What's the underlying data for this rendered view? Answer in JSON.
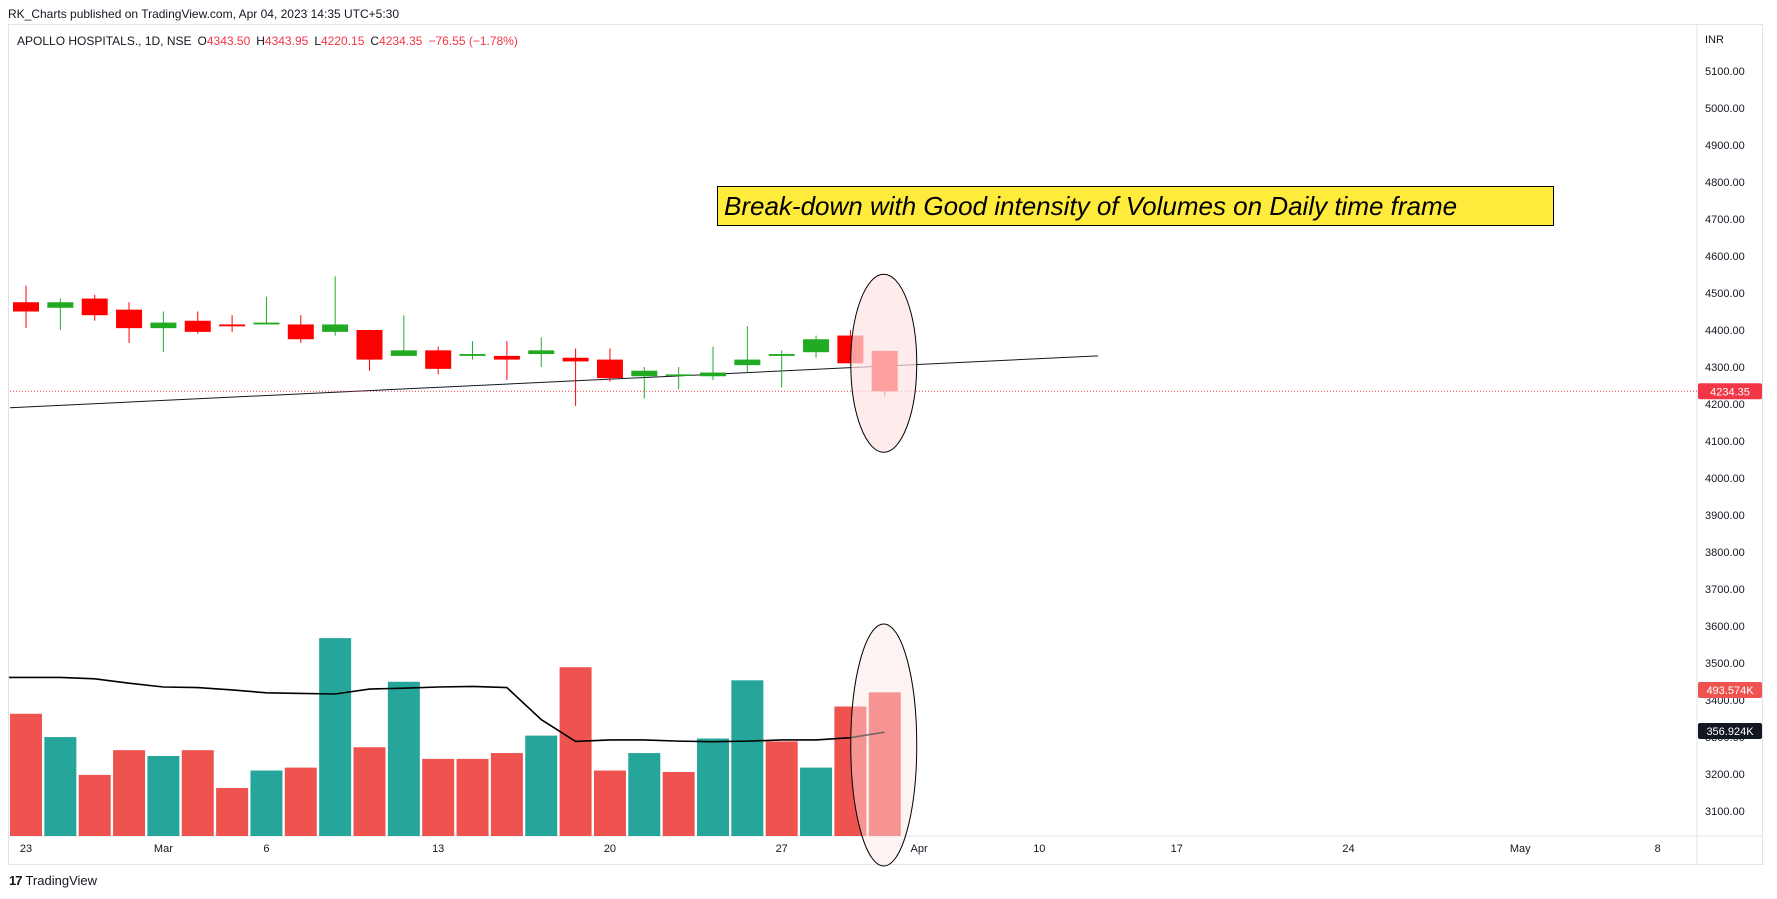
{
  "header": {
    "publisher": "RK_Charts published on TradingView.com, Apr 04, 2023 14:35 UTC+5:30"
  },
  "legend": {
    "symbol": "APOLLO HOSPITALS., 1D, NSE",
    "open_label": "O",
    "open": "4343.50",
    "high_label": "H",
    "high": "4343.95",
    "low_label": "L",
    "low": "4220.15",
    "close_label": "C",
    "close": "4234.35",
    "change": "−76.55 (−1.78%)"
  },
  "currency": "INR",
  "annotation": "Break-down with Good intensity of Volumes on Daily time frame",
  "footer": {
    "brand": "TradingView"
  },
  "colors": {
    "up": "#22ab22",
    "down": "#ff0000",
    "vol_up": "#26a69a",
    "vol_down": "#ef5350",
    "annotation_bg": "#ffeb3b",
    "ellipse_fill": "#fde4e4"
  },
  "chart_data": {
    "type": "candlestick",
    "price_axis": {
      "ticks": [
        5100,
        5000,
        4900,
        4800,
        4700,
        4600,
        4500,
        4400,
        4300,
        4200,
        4100,
        4000,
        3900,
        3800,
        3700,
        3600,
        3500,
        3400,
        3300,
        3200,
        3100
      ],
      "last_price_label": "4234.35",
      "volume_label": "493.574K",
      "volume_ma_label": "356.924K"
    },
    "x_axis": {
      "ticks": [
        "23",
        "Mar",
        "6",
        "13",
        "20",
        "27",
        "Apr",
        "10",
        "17",
        "24",
        "May",
        "8"
      ]
    },
    "candles": [
      {
        "o": 4475,
        "h": 4520,
        "l": 4405,
        "c": 4450
      },
      {
        "o": 4460,
        "h": 4485,
        "l": 4400,
        "c": 4475
      },
      {
        "o": 4485,
        "h": 4495,
        "l": 4425,
        "c": 4440
      },
      {
        "o": 4455,
        "h": 4475,
        "l": 4365,
        "c": 4405
      },
      {
        "o": 4405,
        "h": 4450,
        "l": 4340,
        "c": 4420
      },
      {
        "o": 4425,
        "h": 4450,
        "l": 4390,
        "c": 4395
      },
      {
        "o": 4415,
        "h": 4440,
        "l": 4395,
        "c": 4410
      },
      {
        "o": 4415,
        "h": 4490,
        "l": 4415,
        "c": 4420
      },
      {
        "o": 4415,
        "h": 4440,
        "l": 4365,
        "c": 4375
      },
      {
        "o": 4395,
        "h": 4545,
        "l": 4385,
        "c": 4415
      },
      {
        "o": 4400,
        "h": 4400,
        "l": 4290,
        "c": 4320
      },
      {
        "o": 4330,
        "h": 4440,
        "l": 4330,
        "c": 4345
      },
      {
        "o": 4345,
        "h": 4355,
        "l": 4280,
        "c": 4295
      },
      {
        "o": 4330,
        "h": 4370,
        "l": 4320,
        "c": 4335
      },
      {
        "o": 4330,
        "h": 4370,
        "l": 4265,
        "c": 4320
      },
      {
        "o": 4335,
        "h": 4380,
        "l": 4300,
        "c": 4345
      },
      {
        "o": 4325,
        "h": 4350,
        "l": 4195,
        "c": 4315
      },
      {
        "o": 4320,
        "h": 4350,
        "l": 4260,
        "c": 4270
      },
      {
        "o": 4275,
        "h": 4300,
        "l": 4215,
        "c": 4290
      },
      {
        "o": 4280,
        "h": 4300,
        "l": 4240,
        "c": 4280
      },
      {
        "o": 4275,
        "h": 4355,
        "l": 4265,
        "c": 4285
      },
      {
        "o": 4305,
        "h": 4410,
        "l": 4285,
        "c": 4320
      },
      {
        "o": 4330,
        "h": 4345,
        "l": 4245,
        "c": 4335
      },
      {
        "o": 4340,
        "h": 4385,
        "l": 4325,
        "c": 4375
      },
      {
        "o": 4385,
        "h": 4400,
        "l": 4310,
        "c": 4310
      },
      {
        "o": 4343.5,
        "h": 4343.95,
        "l": 4220.15,
        "c": 4234.35
      }
    ],
    "volume_k": [
      420,
      340,
      210,
      295,
      275,
      295,
      165,
      225,
      235,
      680,
      305,
      530,
      265,
      265,
      285,
      345,
      580,
      225,
      285,
      220,
      335,
      535,
      325,
      235,
      445,
      493.574
    ],
    "volume_up": [
      false,
      true,
      false,
      false,
      true,
      false,
      false,
      true,
      false,
      true,
      false,
      true,
      false,
      false,
      false,
      true,
      false,
      false,
      true,
      false,
      true,
      true,
      false,
      true,
      false,
      false
    ],
    "volume_ma_k": [
      545,
      545,
      540,
      525,
      512,
      510,
      502,
      492,
      490,
      488,
      505,
      508,
      512,
      514,
      510,
      400,
      325,
      330,
      330,
      326,
      324,
      326,
      330,
      330,
      338,
      356.924
    ]
  }
}
